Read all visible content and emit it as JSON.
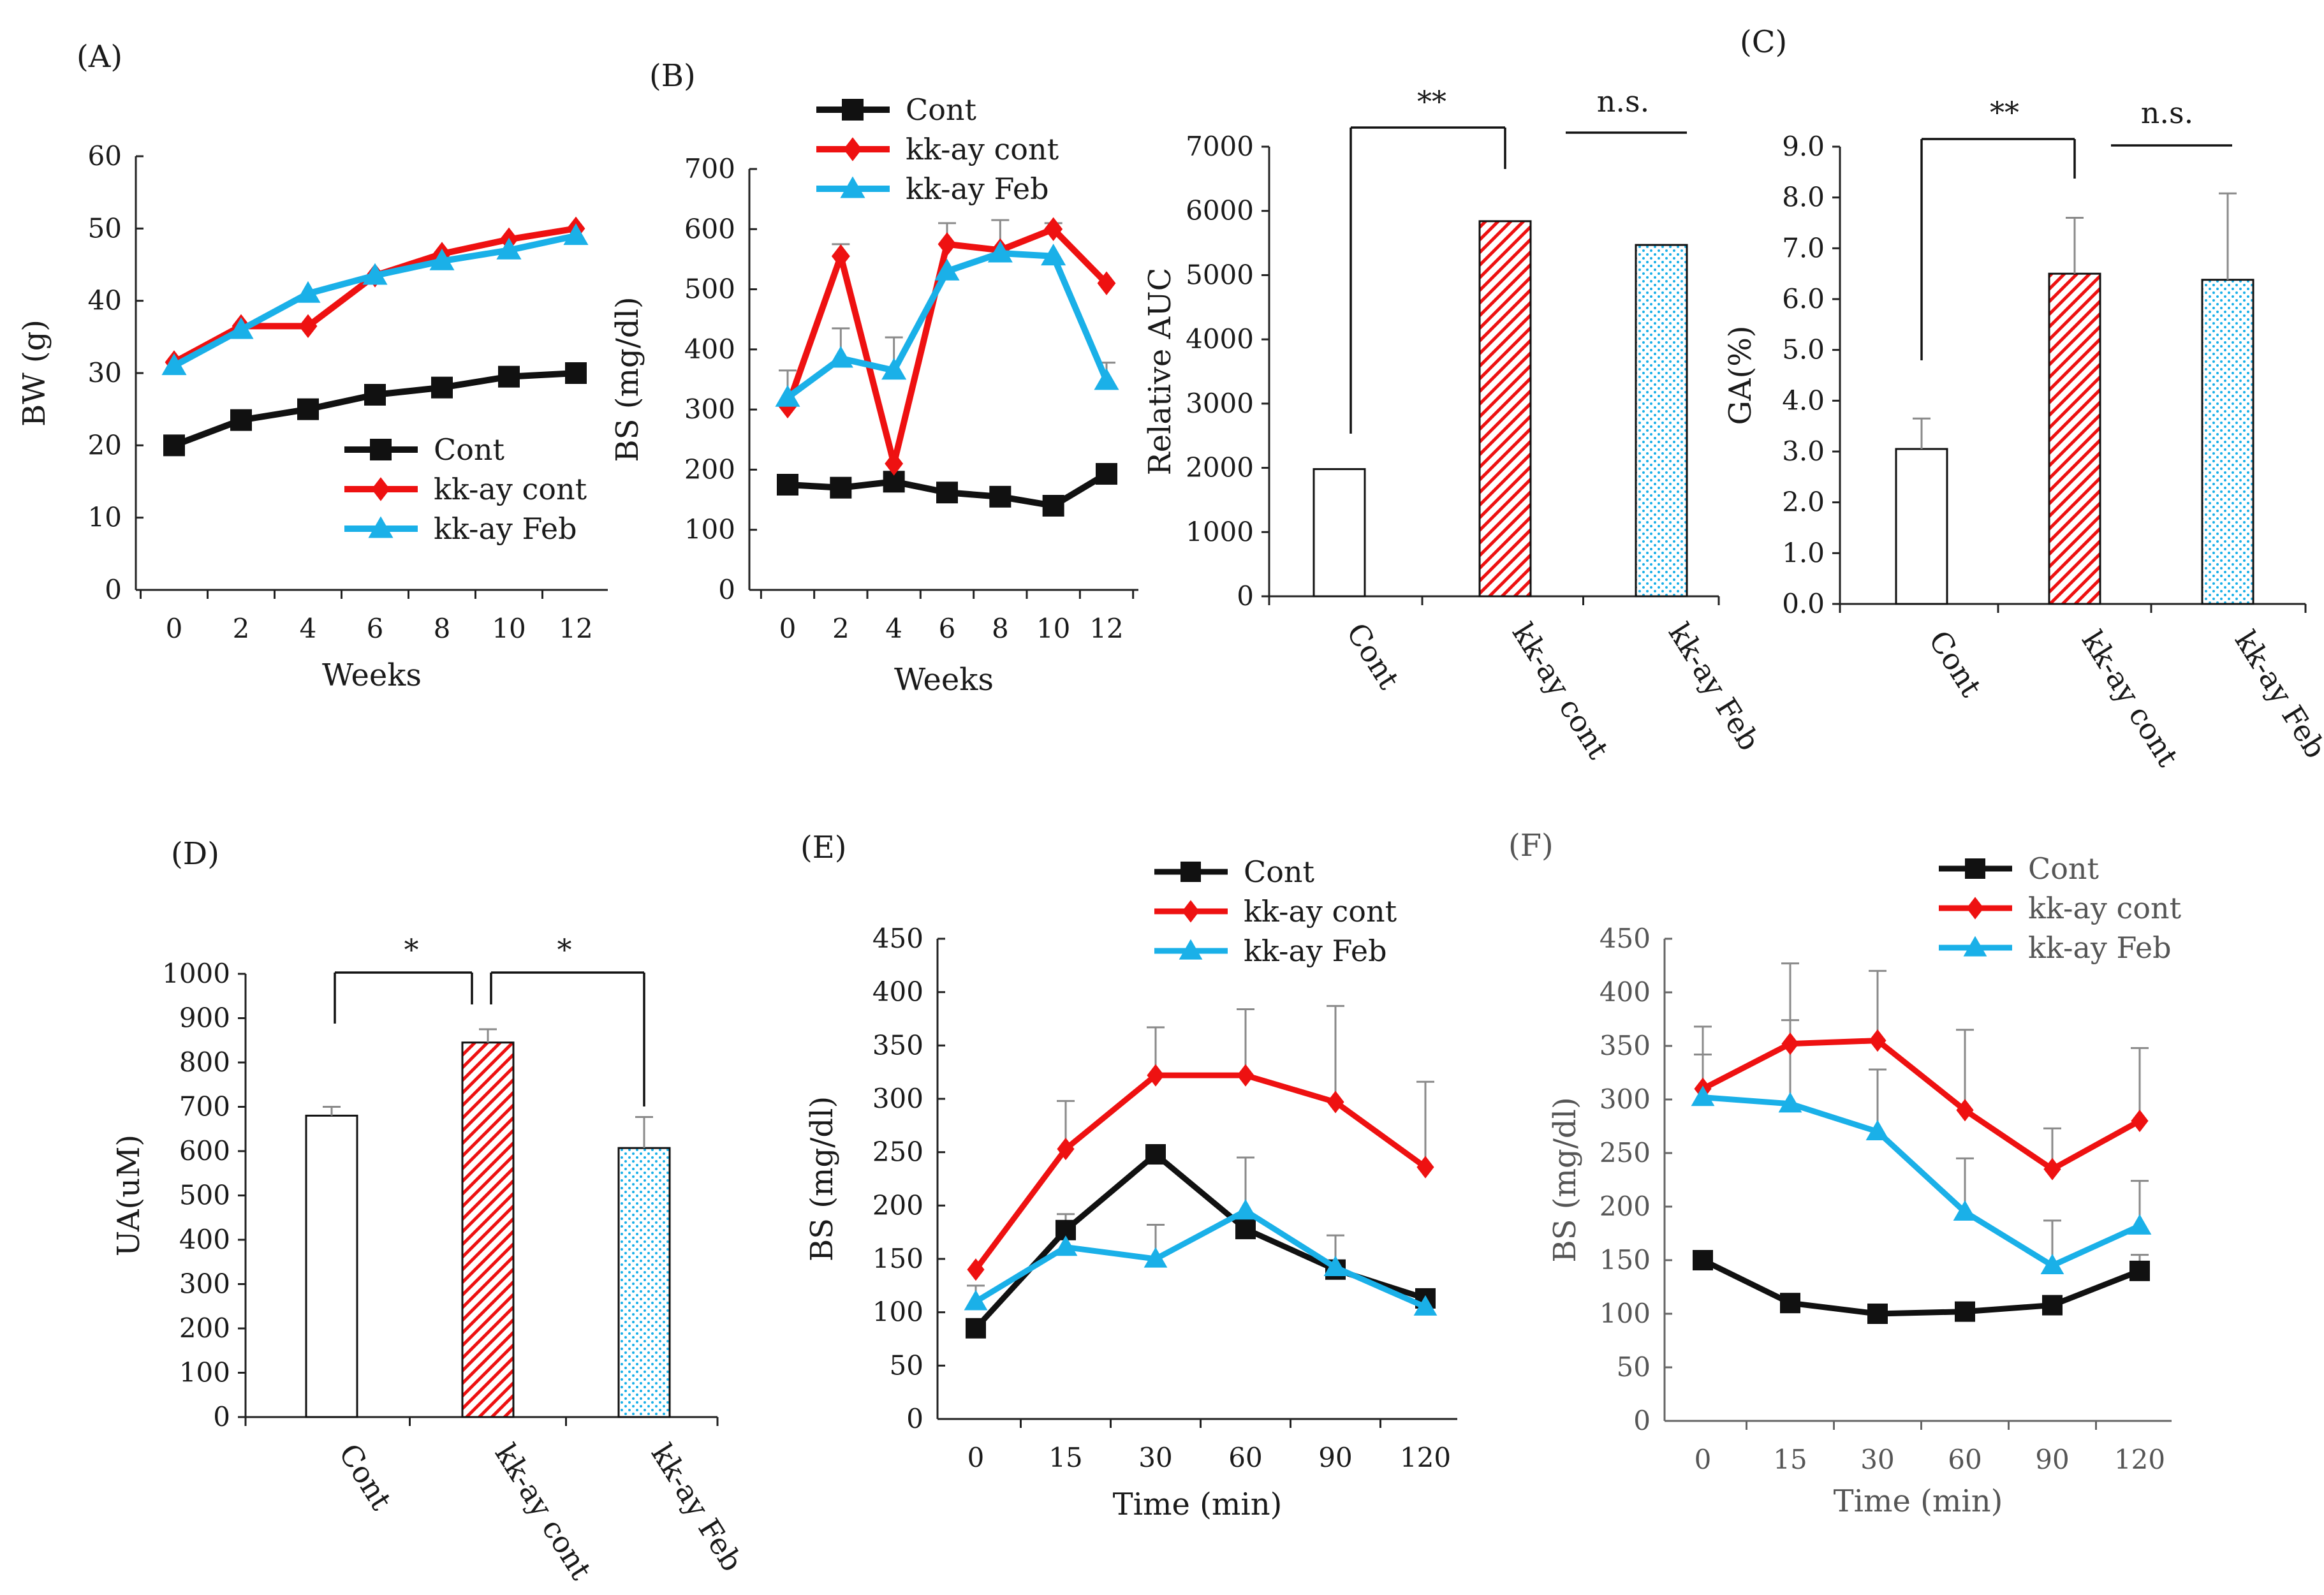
{
  "figure": "Six-panel figure of body weight, blood sugar, AUC, GA, UA and glucose tolerance",
  "colors": {
    "cont": "#111111",
    "kkay_cont": "#ee1111",
    "kkay_feb": "#1ab0e8",
    "axis": "#222222",
    "errbar": "#8a8a8a"
  },
  "chart_data": [
    {
      "id": "A",
      "type": "line",
      "panel_label": "(A)",
      "xlabel": "Weeks",
      "ylabel": "BW (g)",
      "x": [
        0,
        2,
        4,
        6,
        8,
        10,
        12
      ],
      "xticks": [
        "0",
        "2",
        "4",
        "6",
        "8",
        "10",
        "12"
      ],
      "ylim": [
        0,
        60
      ],
      "yticks": [
        "0",
        "10",
        "20",
        "30",
        "40",
        "50",
        "60"
      ],
      "legend": [
        "Cont",
        "kk-ay cont",
        "kk-ay Feb"
      ],
      "series": [
        {
          "name": "Cont",
          "values": [
            20,
            23.5,
            25,
            27,
            28,
            29.5,
            30
          ],
          "err": [
            0,
            0,
            0,
            0,
            0,
            0,
            0
          ]
        },
        {
          "name": "kk-ay cont",
          "values": [
            31.5,
            36.5,
            36.5,
            43.5,
            46.5,
            48.5,
            50
          ],
          "err": [
            0,
            0,
            0,
            0,
            0,
            0,
            0
          ]
        },
        {
          "name": "kk-ay Feb",
          "values": [
            31,
            36,
            41,
            43.5,
            45.5,
            47,
            49
          ],
          "err": [
            0,
            0,
            0,
            0,
            0,
            0,
            0
          ]
        }
      ]
    },
    {
      "id": "B",
      "type": "line",
      "panel_label": "(B)",
      "xlabel": "Weeks",
      "ylabel": "BS (mg/dl)",
      "x": [
        0,
        2,
        4,
        6,
        8,
        10,
        12
      ],
      "xticks": [
        "0",
        "2",
        "4",
        "6",
        "8",
        "10",
        "12"
      ],
      "ylim": [
        0,
        700
      ],
      "yticks": [
        "0",
        "100",
        "200",
        "300",
        "400",
        "500",
        "600",
        "700"
      ],
      "legend": [
        "Cont",
        "kk-ay cont",
        "kk-ay Feb"
      ],
      "series": [
        {
          "name": "Cont",
          "values": [
            175,
            170,
            180,
            162,
            155,
            140,
            193
          ],
          "err": [
            0,
            0,
            0,
            0,
            0,
            0,
            0
          ]
        },
        {
          "name": "kk-ay cont",
          "values": [
            305,
            555,
            210,
            575,
            565,
            600,
            510
          ],
          "err": [
            0,
            20,
            0,
            35,
            50,
            10,
            0
          ]
        },
        {
          "name": "kk-ay Feb",
          "values": [
            320,
            385,
            365,
            530,
            560,
            555,
            348
          ],
          "err": [
            45,
            50,
            55,
            0,
            0,
            0,
            30
          ]
        }
      ]
    },
    {
      "id": "B-AUC",
      "type": "bar",
      "ylabel": "Relative AUC",
      "categories": [
        "Cont",
        "kk-ay cont",
        "kk-ay Feb"
      ],
      "values": [
        1980,
        5840,
        5470
      ],
      "err": [
        0,
        0,
        0
      ],
      "ylim": [
        0,
        7000
      ],
      "yticks": [
        "0",
        "1000",
        "2000",
        "3000",
        "4000",
        "5000",
        "6000",
        "7000"
      ],
      "significance": [
        {
          "from": "Cont",
          "to": "kk-ay cont",
          "label": "**"
        },
        {
          "over": "kk-ay Feb",
          "label": "n.s."
        }
      ]
    },
    {
      "id": "C",
      "type": "bar",
      "panel_label": "(C)",
      "ylabel": "GA(%)",
      "categories": [
        "Cont",
        "kk-ay cont",
        "kk-ay Feb"
      ],
      "values": [
        3.05,
        6.5,
        6.38
      ],
      "err": [
        0.6,
        1.1,
        1.7
      ],
      "ylim": [
        0,
        9
      ],
      "yticks": [
        "0.0",
        "1.0",
        "2.0",
        "3.0",
        "4.0",
        "5.0",
        "6.0",
        "7.0",
        "8.0",
        "9.0"
      ],
      "significance": [
        {
          "from": "Cont",
          "to": "kk-ay cont",
          "label": "**"
        },
        {
          "over": "kk-ay Feb",
          "label": "n.s."
        }
      ]
    },
    {
      "id": "D",
      "type": "bar",
      "panel_label": "(D)",
      "ylabel": "UA(uM)",
      "categories": [
        "Cont",
        "kk-ay cont",
        "kk-ay Feb"
      ],
      "values": [
        680,
        845,
        607
      ],
      "err": [
        20,
        30,
        70
      ],
      "ylim": [
        0,
        1000
      ],
      "yticks": [
        "0",
        "100",
        "200",
        "300",
        "400",
        "500",
        "600",
        "700",
        "800",
        "900",
        "1000"
      ],
      "significance": [
        {
          "from": "Cont",
          "to": "kk-ay cont",
          "label": "*"
        },
        {
          "from": "kk-ay cont",
          "to": "kk-ay Feb",
          "label": "*"
        }
      ]
    },
    {
      "id": "E",
      "type": "line",
      "panel_label": "(E)",
      "xlabel": "Time (min)",
      "ylabel": "BS (mg/dl)",
      "x": [
        0,
        15,
        30,
        60,
        90,
        120
      ],
      "xticks": [
        "0",
        "15",
        "30",
        "60",
        "90",
        "120"
      ],
      "ylim": [
        0,
        450
      ],
      "yticks": [
        "0",
        "50",
        "100",
        "150",
        "200",
        "250",
        "300",
        "350",
        "400",
        "450"
      ],
      "legend": [
        "Cont",
        "kk-ay cont",
        "kk-ay Feb"
      ],
      "series": [
        {
          "name": "Cont",
          "values": [
            85,
            177,
            248,
            178,
            140,
            113
          ],
          "err": [
            0,
            15,
            0,
            0,
            0,
            0
          ]
        },
        {
          "name": "kk-ay cont",
          "values": [
            140,
            253,
            322,
            322,
            297,
            236
          ],
          "err": [
            0,
            45,
            45,
            62,
            90,
            80
          ]
        },
        {
          "name": "kk-ay Feb",
          "values": [
            110,
            161,
            150,
            195,
            142,
            105
          ],
          "err": [
            15,
            0,
            32,
            50,
            30,
            0
          ]
        }
      ]
    },
    {
      "id": "F",
      "type": "line",
      "panel_label": "(F)",
      "xlabel": "Time (min)",
      "ylabel": "BS (mg/dl)",
      "x": [
        0,
        15,
        30,
        60,
        90,
        120
      ],
      "xticks": [
        "0",
        "15",
        "30",
        "60",
        "90",
        "120"
      ],
      "ylim": [
        0,
        450
      ],
      "yticks": [
        "0",
        "50",
        "100",
        "150",
        "200",
        "250",
        "300",
        "350",
        "400",
        "450"
      ],
      "legend": [
        "Cont",
        "kk-ay cont",
        "kk-ay Feb"
      ],
      "series": [
        {
          "name": "Cont",
          "values": [
            150,
            110,
            100,
            102,
            108,
            140
          ],
          "err": [
            0,
            8,
            0,
            8,
            0,
            15
          ]
        },
        {
          "name": "kk-ay cont",
          "values": [
            310,
            352,
            355,
            290,
            235,
            280
          ],
          "err": [
            58,
            75,
            65,
            75,
            38,
            68
          ]
        },
        {
          "name": "kk-ay Feb",
          "values": [
            302,
            296,
            270,
            195,
            145,
            182
          ],
          "err": [
            40,
            78,
            58,
            50,
            42,
            42
          ]
        }
      ]
    }
  ]
}
